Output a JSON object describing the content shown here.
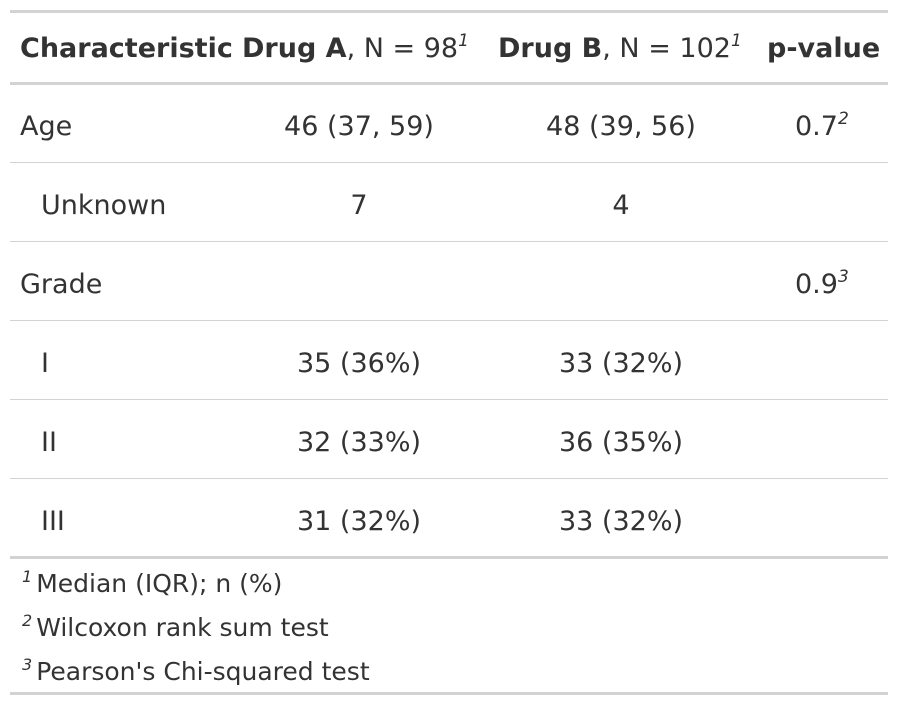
{
  "table": {
    "header": {
      "characteristic": "Characteristic",
      "drug_a_name": "Drug A",
      "drug_a_n": ", N = 98",
      "drug_a_sup": "1",
      "drug_b_name": "Drug B",
      "drug_b_n": ", N = 102",
      "drug_b_sup": "1",
      "p_value": "p-value"
    },
    "rows": [
      {
        "label": "Age",
        "a": "46 (37, 59)",
        "b": "48 (39, 56)",
        "p": "0.7",
        "p_sup": "2"
      },
      {
        "label": "Unknown",
        "a": "7",
        "b": "4",
        "p": "",
        "p_sup": ""
      },
      {
        "label": "Grade",
        "a": "",
        "b": "",
        "p": "0.9",
        "p_sup": "3"
      },
      {
        "label": "I",
        "a": "35 (36%)",
        "b": "33 (32%)",
        "p": "",
        "p_sup": ""
      },
      {
        "label": "II",
        "a": "32 (33%)",
        "b": "36 (35%)",
        "p": "",
        "p_sup": ""
      },
      {
        "label": "III",
        "a": "31 (32%)",
        "b": "33 (32%)",
        "p": "",
        "p_sup": ""
      }
    ],
    "footnotes": [
      {
        "mark": "1",
        "text": "Median (IQR); n (%)"
      },
      {
        "mark": "2",
        "text": "Wilcoxon rank sum test"
      },
      {
        "mark": "3",
        "text": "Pearson's Chi-squared test"
      }
    ]
  },
  "colors": {
    "text": "#333333",
    "rule": "#d3d3d3"
  }
}
